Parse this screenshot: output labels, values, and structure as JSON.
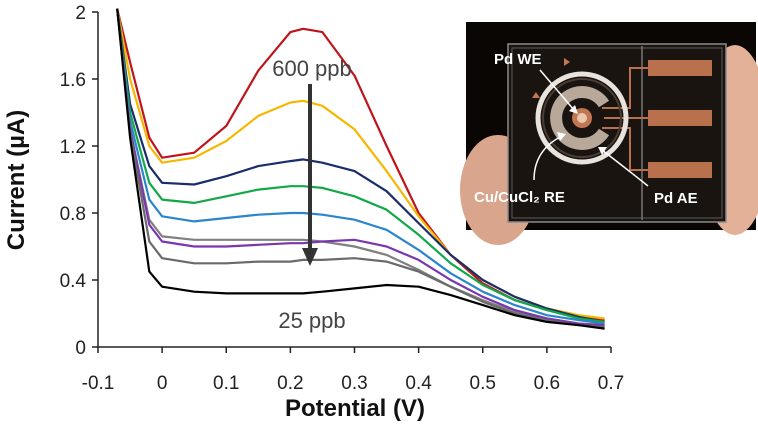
{
  "chart_data": {
    "type": "line",
    "xlabel": "Potential (V)",
    "ylabel": "Current (µA)",
    "xlim": [
      -0.1,
      0.7
    ],
    "ylim": [
      0,
      2
    ],
    "x_ticks": [
      "-0.1",
      "0",
      "0.1",
      "0.2",
      "0.3",
      "0.4",
      "0.5",
      "0.6",
      "0.7"
    ],
    "y_ticks": [
      "0",
      "0.4",
      "0.8",
      "1.2",
      "1.6",
      "2"
    ],
    "grid": false,
    "annotations": {
      "top": "600 ppb",
      "bottom": "25 ppb",
      "arrow": "decreasing concentration from 600 ppb to 25 ppb"
    },
    "inset_labels": {
      "we": "Pd WE",
      "re": "Cu/CuCl₂ RE",
      "ae": "Pd AE"
    },
    "x": [
      -0.07,
      -0.05,
      -0.02,
      0.0,
      0.05,
      0.1,
      0.15,
      0.2,
      0.22,
      0.25,
      0.3,
      0.35,
      0.4,
      0.45,
      0.5,
      0.55,
      0.6,
      0.65,
      0.69
    ],
    "series": [
      {
        "color": "#c0141c",
        "values": [
          2.05,
          1.7,
          1.25,
          1.13,
          1.16,
          1.32,
          1.65,
          1.88,
          1.9,
          1.88,
          1.62,
          1.2,
          0.8,
          0.55,
          0.38,
          0.28,
          0.22,
          0.18,
          0.16
        ]
      },
      {
        "color": "#f5b800",
        "values": [
          2.05,
          1.6,
          1.2,
          1.1,
          1.13,
          1.23,
          1.38,
          1.46,
          1.47,
          1.44,
          1.3,
          1.05,
          0.78,
          0.55,
          0.4,
          0.3,
          0.23,
          0.19,
          0.17
        ]
      },
      {
        "color": "#1a2d6b",
        "values": [
          2.05,
          1.45,
          1.08,
          0.98,
          0.97,
          1.02,
          1.08,
          1.11,
          1.12,
          1.1,
          1.05,
          0.93,
          0.74,
          0.55,
          0.4,
          0.3,
          0.23,
          0.18,
          0.15
        ]
      },
      {
        "color": "#12a84a",
        "values": [
          2.05,
          1.4,
          0.98,
          0.88,
          0.86,
          0.9,
          0.94,
          0.96,
          0.96,
          0.95,
          0.9,
          0.82,
          0.67,
          0.5,
          0.37,
          0.28,
          0.22,
          0.17,
          0.15
        ]
      },
      {
        "color": "#2a86cc",
        "values": [
          2.05,
          1.35,
          0.88,
          0.78,
          0.75,
          0.77,
          0.79,
          0.8,
          0.8,
          0.79,
          0.76,
          0.7,
          0.58,
          0.44,
          0.33,
          0.25,
          0.19,
          0.16,
          0.14
        ]
      },
      {
        "color": "#808080",
        "values": [
          2.05,
          1.3,
          0.76,
          0.66,
          0.64,
          0.64,
          0.64,
          0.64,
          0.64,
          0.63,
          0.6,
          0.55,
          0.46,
          0.36,
          0.28,
          0.21,
          0.17,
          0.14,
          0.13
        ]
      },
      {
        "color": "#7a35b0",
        "values": [
          2.05,
          1.3,
          0.73,
          0.63,
          0.6,
          0.6,
          0.61,
          0.62,
          0.62,
          0.63,
          0.64,
          0.6,
          0.52,
          0.4,
          0.3,
          0.22,
          0.17,
          0.14,
          0.13
        ]
      },
      {
        "color": "#6a6a6a",
        "values": [
          2.05,
          1.28,
          0.63,
          0.53,
          0.5,
          0.5,
          0.51,
          0.51,
          0.52,
          0.52,
          0.53,
          0.51,
          0.45,
          0.36,
          0.27,
          0.2,
          0.16,
          0.13,
          0.12
        ]
      },
      {
        "color": "#000000",
        "values": [
          2.05,
          1.25,
          0.45,
          0.36,
          0.33,
          0.32,
          0.32,
          0.32,
          0.32,
          0.33,
          0.35,
          0.37,
          0.36,
          0.31,
          0.25,
          0.19,
          0.15,
          0.13,
          0.11
        ]
      }
    ]
  }
}
